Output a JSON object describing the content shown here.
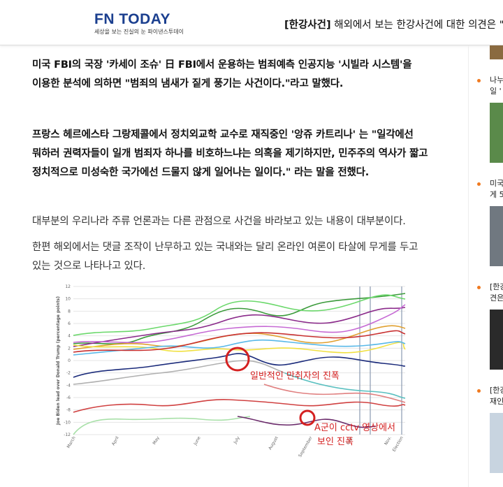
{
  "header": {
    "logo": "FN TODAY",
    "tagline": "세상을 보는 진실의 눈 파이낸스투데이",
    "ticker_tag": "[한강사건]",
    "ticker_text": "해외에서 보는 한강사건에 대한 의견은 \"E"
  },
  "article": {
    "paragraphs": [
      "미국 FBI의 국장 '카세이 조슈' 日 FBI에서 운용하는 범죄예측 인공지능 '시빌라 시스템'을 이용한 분석에 의하면 \"범죄의 냄새가 짙게 풍기는 사건이다.\"라고 말했다.",
      "프랑스 헤르에스타 그랑제콜에서 정치외교학 교수로 재직중인 '앙쥬 카트리나' 는  \"일각에선 뭐하러 권력자들이 일개 범죄자 하나를 비호하느냐는 의혹을 제기하지만, 민주주의 역사가 짧고 정치적으로 미성숙한 국가에선 드물지 않게 일어나는 일이다.\" 라는 말을 전했다.",
      "대부분의 우리나라 주류 언론과는 다른 관점으로 사건을 바라보고 있는 내용이 대부분이다.",
      "한편 해외에서는 댓글 조작이 난무하고 있는 국내와는 달리 온라인 여론이 타살에 무게를 두고 있는 것으로 나타나고 있다."
    ]
  },
  "figure": {
    "ylabel": "Joe Biden lead over Donald Trump (percentage points)",
    "yticks": [
      12,
      10,
      8,
      6,
      4,
      2,
      0,
      -2,
      -4,
      -6,
      -8,
      -10,
      -12
    ],
    "ylim": [
      -12,
      12
    ],
    "xlabels": [
      "March",
      "April",
      "May",
      "June",
      "July",
      "August",
      "September",
      "Oct.",
      "Nov.",
      "Election"
    ],
    "annotations": [
      "일반적인 만취자의 진폭",
      "A군이 cctv 영상에서",
      "보인 진폭"
    ]
  },
  "sidebar": {
    "items": [
      [
        "나누",
        "일 '"
      ],
      [
        "미국",
        "게 5"
      ],
      [
        "[한강",
        "견은"
      ],
      [
        "[한강",
        "재인"
      ]
    ]
  }
}
